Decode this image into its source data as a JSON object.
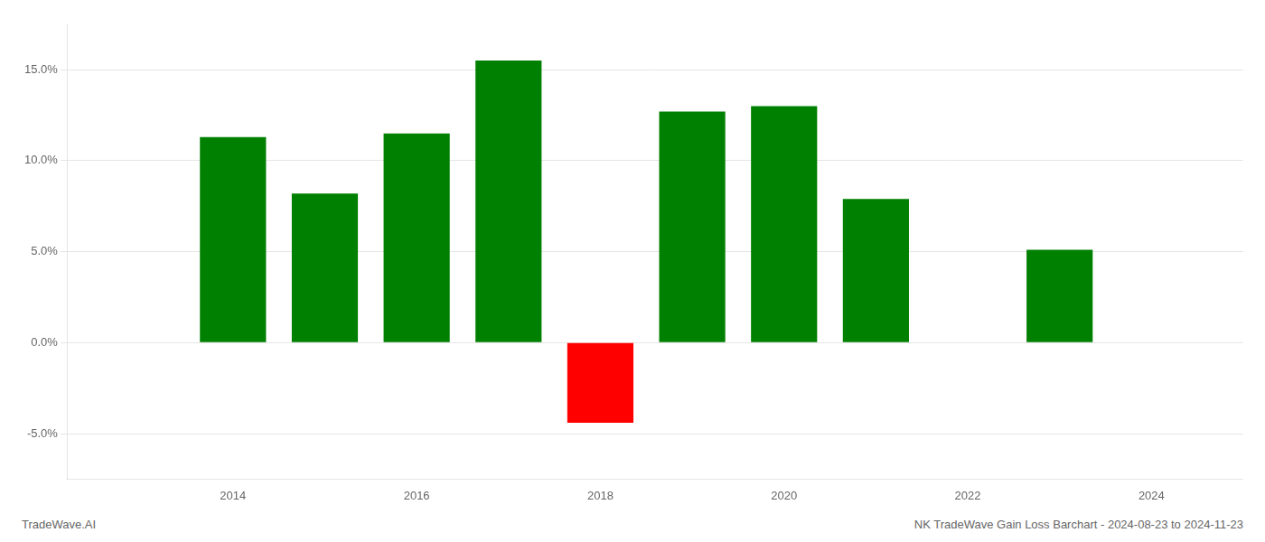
{
  "chart_data": {
    "type": "bar",
    "x": [
      2013,
      2014,
      2015,
      2016,
      2017,
      2018,
      2019,
      2020,
      2021,
      2022,
      2023,
      2024
    ],
    "values": [
      null,
      0.113,
      0.082,
      0.115,
      0.155,
      -0.044,
      0.127,
      0.13,
      0.079,
      null,
      0.051,
      null
    ],
    "colors": [
      "#008000",
      "#008000",
      "#008000",
      "#008000",
      "#008000",
      "#ff0000",
      "#008000",
      "#008000",
      "#008000",
      "#008000",
      "#008000",
      "#008000"
    ],
    "xlim": [
      2012.2,
      2025.0
    ],
    "xticks": [
      2014,
      2016,
      2018,
      2020,
      2022,
      2024
    ],
    "ylim": [
      -0.075,
      0.175
    ],
    "yticks": [
      {
        "value": -0.05,
        "label": "-5.0%"
      },
      {
        "value": 0.0,
        "label": "0.0%"
      },
      {
        "value": 0.05,
        "label": "5.0%"
      },
      {
        "value": 0.1,
        "label": "10.0%"
      },
      {
        "value": 0.15,
        "label": "15.0%"
      }
    ],
    "grid": true,
    "annotations": [
      "TradeWave.AI",
      "NK TradeWave Gain Loss Barchart - 2024-08-23 to 2024-11-23"
    ]
  }
}
